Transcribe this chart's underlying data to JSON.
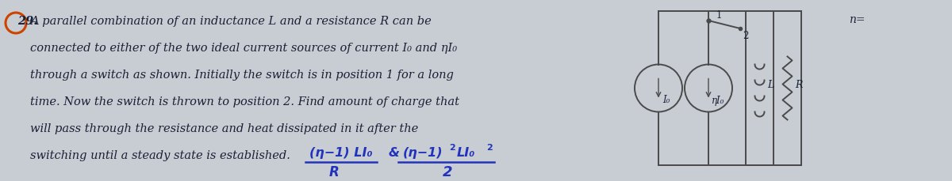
{
  "bg_color": "#c8cdd4",
  "text_color": "#1a2035",
  "answer_color": "#2233bb",
  "circle_color": "#cc4400",
  "gray": "#4a4a4a",
  "font_size_main": 10.5,
  "lines": [
    "A parallel combination of an inductance L and a resistance R can be",
    "connected to either of the two ideal current sources of current I₀ and ηI₀",
    "through a switch as shown. Initially the switch is in position 1 for a long",
    "time. Now the switch is thrown to position 2. Find amount of charge that",
    "will pass through the resistance and heat dissipated in it after the",
    "switching until a steady state is established."
  ],
  "q_num": "29",
  "ans_numerator1": "(η−1) LI₀",
  "ans_denom1": "R",
  "ans_amp": "&",
  "ans_numerator2": "(η−1)",
  "ans_exp2a": "2",
  "ans_mid2": "LI₀",
  "ans_exp2b": "2",
  "ans_denom2": "2",
  "src1_label": "I₀",
  "src2_label": "ηI₀",
  "L_label": "L",
  "R_label": "R",
  "sw1": "1",
  "sw2": "2",
  "neta_label": "n="
}
